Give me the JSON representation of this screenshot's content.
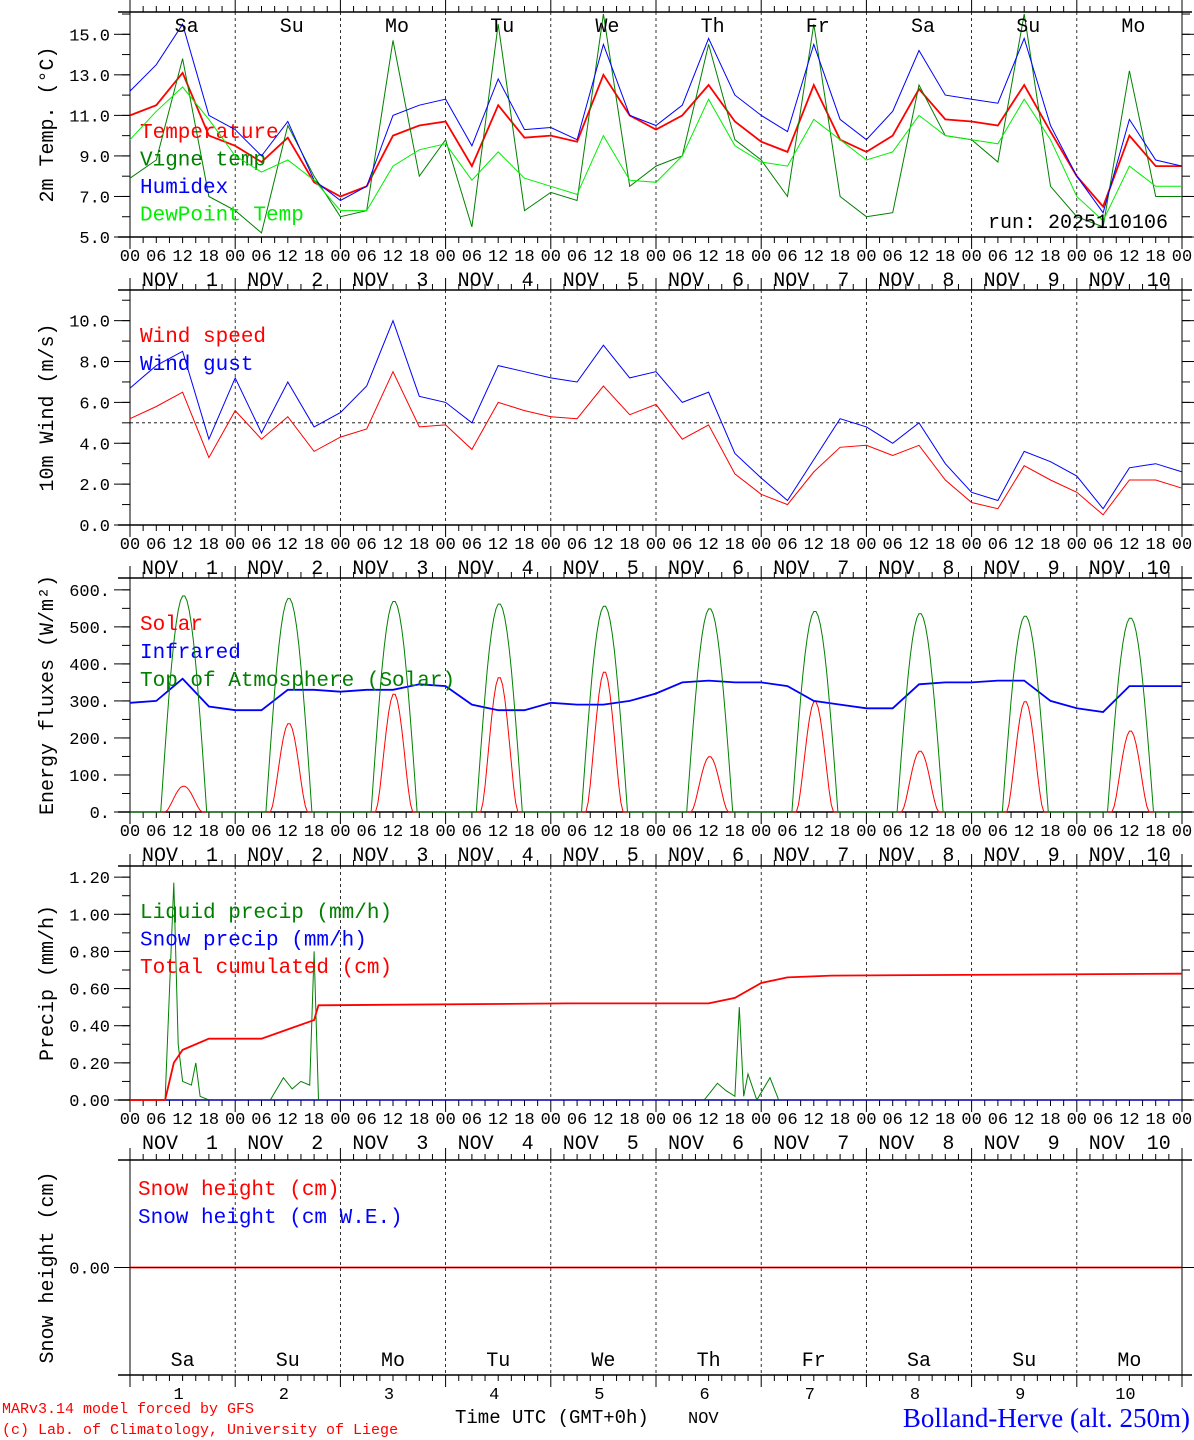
{
  "colors": {
    "red": "#ff0000",
    "blue": "#0000ff",
    "green": "#008000",
    "lime": "#00ee00",
    "black": "#000000"
  },
  "weekdays": [
    {
      "label": "Sa",
      "weekend": true
    },
    {
      "label": "Su",
      "weekend": true
    },
    {
      "label": "Mo",
      "weekend": false
    },
    {
      "label": "Tu",
      "weekend": false
    },
    {
      "label": "We",
      "weekend": false
    },
    {
      "label": "Th",
      "weekend": false
    },
    {
      "label": "Fr",
      "weekend": false
    },
    {
      "label": "Sa",
      "weekend": true
    },
    {
      "label": "Su",
      "weekend": true
    },
    {
      "label": "Mo",
      "weekend": false
    }
  ],
  "hour_labels": [
    "00",
    "06",
    "12",
    "18"
  ],
  "month_label": "NOV",
  "days": [
    "1",
    "2",
    "3",
    "4",
    "5",
    "6",
    "7",
    "8",
    "9",
    "10"
  ],
  "footer": {
    "credit1": "MARv3.14 model forced by GFS",
    "credit2": "(c) Lab. of Climatology, University of Liege",
    "xlabel": "Time UTC (GMT+0h)",
    "month": "NOV",
    "station": "Bolland-Herve (alt. 250m)"
  },
  "chart_data": [
    {
      "type": "line",
      "ylabel": "2m Temp. (°C)",
      "ylim": [
        5.0,
        16.1
      ],
      "yticks": [
        "5.0",
        "7.0",
        "9.0",
        "11.0",
        "13.0",
        "15.0"
      ],
      "annotation": "run: 2025110106",
      "x_step_hours": 6,
      "series": [
        {
          "name": "Temperature",
          "color": "#ff0000",
          "values": [
            11.0,
            11.5,
            13.1,
            10.0,
            9.5,
            8.7,
            9.9,
            7.7,
            7.0,
            7.5,
            10.0,
            10.5,
            10.7,
            8.5,
            11.5,
            9.9,
            10.0,
            9.7,
            13.0,
            11.0,
            10.3,
            11.0,
            12.5,
            10.7,
            9.7,
            9.2,
            12.5,
            9.8,
            9.2,
            10.0,
            12.3,
            10.8,
            10.7,
            10.5,
            12.5,
            10.2,
            8.0,
            6.5,
            10.0,
            8.5,
            8.5
          ]
        },
        {
          "name": "Vigne temp",
          "color": "#008000",
          "values": [
            7.9,
            8.8,
            13.8,
            7.0,
            6.3,
            5.2,
            10.5,
            8.0,
            6.0,
            6.3,
            14.7,
            8.0,
            9.8,
            5.5,
            15.5,
            6.3,
            7.2,
            6.8,
            16.0,
            7.5,
            8.5,
            9.0,
            14.5,
            9.8,
            8.8,
            7.0,
            15.5,
            7.0,
            6.0,
            6.2,
            12.5,
            10.0,
            9.8,
            8.7,
            16.0,
            7.5,
            6.0,
            5.5,
            13.2,
            7.0,
            7.0
          ]
        },
        {
          "name": "Humidex",
          "color": "#0000ff",
          "values": [
            12.2,
            13.5,
            15.5,
            11.0,
            10.3,
            9.0,
            10.7,
            7.8,
            6.8,
            7.5,
            11.0,
            11.5,
            11.8,
            9.5,
            12.8,
            10.3,
            10.4,
            9.8,
            14.5,
            11.0,
            10.5,
            11.5,
            14.8,
            12.0,
            11.0,
            10.2,
            14.5,
            10.8,
            9.8,
            11.2,
            14.2,
            12.0,
            11.8,
            11.6,
            14.8,
            10.5,
            8.0,
            6.2,
            10.8,
            8.8,
            8.5
          ]
        },
        {
          "name": "DewPoint Temp",
          "color": "#00ee00",
          "values": [
            9.8,
            11.2,
            12.4,
            10.8,
            9.0,
            8.2,
            8.8,
            7.8,
            6.3,
            6.3,
            8.5,
            9.3,
            9.6,
            7.8,
            9.2,
            7.9,
            7.5,
            7.1,
            10.0,
            7.8,
            7.7,
            9.0,
            11.8,
            9.5,
            8.7,
            8.5,
            10.8,
            9.8,
            8.8,
            9.2,
            11.0,
            10.0,
            9.8,
            9.6,
            11.8,
            9.8,
            7.0,
            5.8,
            8.5,
            7.5,
            7.5
          ]
        }
      ]
    },
    {
      "type": "line",
      "ylabel": "10m Wind (m/s)",
      "ylim": [
        0,
        11.5
      ],
      "yticks": [
        "0.0",
        "2.0",
        "4.0",
        "6.0",
        "8.0",
        "10.0"
      ],
      "reference_line": 5.0,
      "x_step_hours": 6,
      "series": [
        {
          "name": "Wind speed",
          "color": "#ff0000",
          "values": [
            5.2,
            5.8,
            6.5,
            3.3,
            5.6,
            4.2,
            5.3,
            3.6,
            4.3,
            4.7,
            7.5,
            4.8,
            4.9,
            3.7,
            6.0,
            5.6,
            5.3,
            5.2,
            6.8,
            5.4,
            5.9,
            4.2,
            4.9,
            2.5,
            1.5,
            1.0,
            2.6,
            3.8,
            3.9,
            3.4,
            3.9,
            2.2,
            1.1,
            0.8,
            2.9,
            2.2,
            1.6,
            0.5,
            2.2,
            2.2,
            1.8
          ]
        },
        {
          "name": "Wind gust",
          "color": "#0000ff",
          "values": [
            6.7,
            7.8,
            8.5,
            4.2,
            7.2,
            4.5,
            7.0,
            4.8,
            5.5,
            6.8,
            10.0,
            6.3,
            6.0,
            5.0,
            7.8,
            7.5,
            7.2,
            7.0,
            8.8,
            7.2,
            7.5,
            6.0,
            6.5,
            3.5,
            2.3,
            1.2,
            3.2,
            5.2,
            4.8,
            4.0,
            5.0,
            3.0,
            1.6,
            1.2,
            3.6,
            3.1,
            2.4,
            0.8,
            2.8,
            3.0,
            2.6
          ]
        }
      ]
    },
    {
      "type": "line",
      "ylabel": "Energy fluxes (W/m²)",
      "ylim": [
        0,
        632
      ],
      "yticks": [
        "0.",
        "100.",
        "200.",
        "300.",
        "400.",
        "500.",
        "600."
      ],
      "series": [
        {
          "name": "Solar",
          "color": "#ff0000",
          "daily_peak": [
            70,
            240,
            320,
            365,
            380,
            150,
            300,
            165,
            300,
            220
          ]
        },
        {
          "name": "Infrared",
          "color": "#0000ff",
          "x_step_hours": 6,
          "values": [
            295,
            300,
            360,
            285,
            275,
            275,
            330,
            330,
            325,
            330,
            330,
            345,
            340,
            290,
            275,
            275,
            295,
            290,
            290,
            300,
            320,
            350,
            355,
            350,
            350,
            340,
            300,
            290,
            280,
            280,
            345,
            350,
            350,
            355,
            355,
            300,
            280,
            270,
            340,
            340,
            340
          ]
        },
        {
          "name": "Top of Atmosphere (Solar)",
          "color": "#008000",
          "daily_peak": [
            585,
            578,
            570,
            563,
            557,
            550,
            543,
            537,
            530,
            525
          ]
        }
      ]
    },
    {
      "type": "line",
      "ylabel": "Precip (mm/h)",
      "ylim": [
        0,
        1.26
      ],
      "yticks": [
        "0.00",
        "0.20",
        "0.40",
        "0.60",
        "0.80",
        "1.00",
        "1.20"
      ],
      "series": [
        {
          "name": "Liquid precip (mm/h)",
          "color": "#008000",
          "points": [
            [
              0,
              0
            ],
            [
              8,
              0
            ],
            [
              10,
              1.17
            ],
            [
              11,
              0.3
            ],
            [
              12,
              0.1
            ],
            [
              14,
              0.08
            ],
            [
              15,
              0.2
            ],
            [
              16,
              0.02
            ],
            [
              18,
              0
            ],
            [
              32,
              0
            ],
            [
              35,
              0.12
            ],
            [
              37,
              0.06
            ],
            [
              39,
              0.1
            ],
            [
              41,
              0.08
            ],
            [
              42,
              0.8
            ],
            [
              43,
              0
            ],
            [
              131,
              0
            ],
            [
              134,
              0.09
            ],
            [
              136,
              0.05
            ],
            [
              138,
              0.02
            ],
            [
              139,
              0.5
            ],
            [
              140,
              0.02
            ],
            [
              141,
              0.14
            ],
            [
              143,
              0
            ],
            [
              146,
              0.12
            ],
            [
              148,
              0
            ],
            [
              240,
              0
            ]
          ]
        },
        {
          "name": "Snow precip (mm/h)",
          "color": "#0000ff",
          "points": [
            [
              0,
              0
            ],
            [
              240,
              0
            ]
          ]
        },
        {
          "name": "Total cumulated (cm)",
          "color": "#ff0000",
          "points": [
            [
              0,
              0
            ],
            [
              8,
              0
            ],
            [
              10,
              0.2
            ],
            [
              12,
              0.27
            ],
            [
              18,
              0.33
            ],
            [
              30,
              0.33
            ],
            [
              36,
              0.38
            ],
            [
              42,
              0.43
            ],
            [
              43,
              0.51
            ],
            [
              100,
              0.52
            ],
            [
              132,
              0.52
            ],
            [
              138,
              0.55
            ],
            [
              144,
              0.63
            ],
            [
              150,
              0.66
            ],
            [
              160,
              0.67
            ],
            [
              240,
              0.68
            ]
          ]
        }
      ]
    },
    {
      "type": "line",
      "ylabel": "Snow height (cm)",
      "ylim": [
        -1,
        1
      ],
      "yticks": [
        "0.00"
      ],
      "series": [
        {
          "name": "Snow height (cm)",
          "color": "#ff0000",
          "points": [
            [
              0,
              0
            ],
            [
              240,
              0
            ]
          ]
        },
        {
          "name": "Snow height (cm W.E.)",
          "color": "#0000ff",
          "points": [
            [
              0,
              0
            ],
            [
              240,
              0
            ]
          ]
        }
      ]
    }
  ]
}
